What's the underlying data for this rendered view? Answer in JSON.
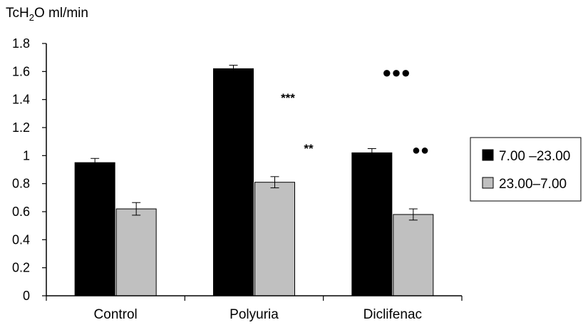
{
  "chart_data": {
    "type": "bar",
    "title": "",
    "ylabel_main": "TcH",
    "ylabel_sub": "2",
    "ylabel_rest": "O ml/min",
    "xlabel": "",
    "ylim": [
      0,
      1.8
    ],
    "yticks": [
      "0",
      "0.2",
      "0.4",
      "0.6",
      "0.8",
      "1",
      "1.2",
      "1.4",
      "1.6",
      "1.8"
    ],
    "categories": [
      "Control",
      "Polyuria",
      "Diclifenac"
    ],
    "series": [
      {
        "name": "7.00 –23.00",
        "color": "#000000",
        "values": [
          0.95,
          1.62,
          1.02
        ],
        "errors": [
          0.03,
          0.025,
          0.03
        ]
      },
      {
        "name": "23.00–7.00",
        "color": "#c0c0c0",
        "values": [
          0.62,
          0.81,
          0.58
        ],
        "errors": [
          0.045,
          0.04,
          0.04
        ]
      }
    ],
    "annotations": [
      "***",
      "**",
      "●●●",
      "●●"
    ],
    "grid": false,
    "legend": "right"
  }
}
